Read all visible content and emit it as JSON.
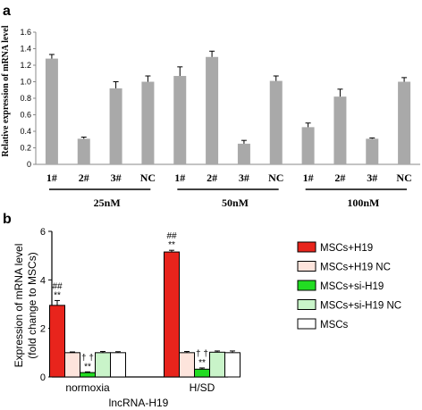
{
  "chart_data": [
    {
      "panel": "a",
      "type": "bar",
      "ylabel": "Relative expression of mRNA level",
      "ylim": [
        0,
        1.6
      ],
      "yticks": [
        "0",
        "0.2",
        "0.4",
        "0.6",
        "0.8",
        "1.0",
        "1.2",
        "1.4",
        "1.6"
      ],
      "grid": false,
      "bar_color": "#a9a9a9",
      "groups": [
        {
          "label": "25nM",
          "categories": [
            "1#",
            "2#",
            "3#",
            "NC"
          ],
          "values": [
            1.28,
            0.31,
            0.92,
            1.0
          ],
          "errors": [
            0.05,
            0.02,
            0.08,
            0.07
          ]
        },
        {
          "label": "50nM",
          "categories": [
            "1#",
            "2#",
            "3#",
            "NC"
          ],
          "values": [
            1.07,
            1.3,
            0.25,
            1.01
          ],
          "errors": [
            0.11,
            0.07,
            0.04,
            0.06
          ]
        },
        {
          "label": "100nM",
          "categories": [
            "1#",
            "2#",
            "3#",
            "NC"
          ],
          "values": [
            0.45,
            0.82,
            0.31,
            1.0
          ],
          "errors": [
            0.05,
            0.09,
            0.01,
            0.05
          ]
        }
      ]
    },
    {
      "panel": "b",
      "type": "bar",
      "ylabel_line1": "Expression of mRNA level",
      "ylabel_line2": "(fold change to MSCs)",
      "xlabel": "lncRNA-H19",
      "ylim": [
        0,
        6
      ],
      "yticks": [
        "0",
        "2",
        "4",
        "6"
      ],
      "grid": false,
      "legend_position": "right",
      "categories": [
        "normoxia",
        "H/SD"
      ],
      "series": [
        {
          "name": "MSCs+H19",
          "color": "#e8241c",
          "values": [
            2.95,
            5.15
          ],
          "errors": [
            0.2,
            0.07
          ]
        },
        {
          "name": "MSCs+H19 NC",
          "color": "#fde4dc",
          "values": [
            1.0,
            1.0
          ],
          "errors": [
            0.03,
            0.05
          ]
        },
        {
          "name": "MSCs+si-H19",
          "color": "#22dd22",
          "values": [
            0.18,
            0.32
          ],
          "errors": [
            0.03,
            0.05
          ]
        },
        {
          "name": "MSCs+si-H19 NC",
          "color": "#c9f4c9",
          "values": [
            1.0,
            1.02
          ],
          "errors": [
            0.05,
            0.05
          ]
        },
        {
          "name": "MSCs",
          "color": "#ffffff",
          "values": [
            1.0,
            1.0
          ],
          "errors": [
            0.04,
            0.07
          ]
        }
      ],
      "annotations": [
        {
          "category": "normoxia",
          "series": 0,
          "lines": [
            "##",
            "**"
          ]
        },
        {
          "category": "normoxia",
          "series": 2,
          "lines": [
            "† †",
            "**"
          ]
        },
        {
          "category": "H/SD",
          "series": 0,
          "lines": [
            "##",
            "**"
          ]
        },
        {
          "category": "H/SD",
          "series": 2,
          "lines": [
            "† †",
            "**"
          ]
        }
      ]
    }
  ]
}
